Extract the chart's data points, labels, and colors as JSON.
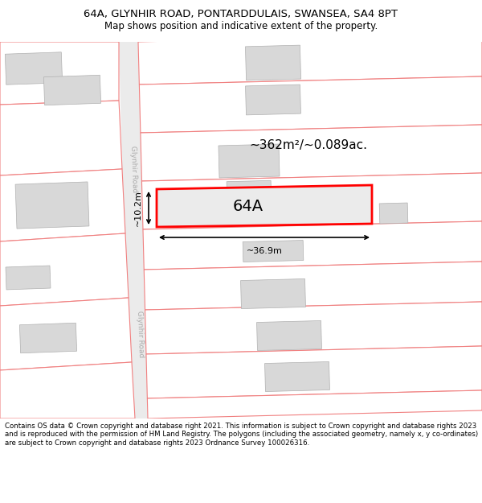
{
  "title_line1": "64A, GLYNHIR ROAD, PONTARDDULAIS, SWANSEA, SA4 8PT",
  "title_line2": "Map shows position and indicative extent of the property.",
  "footer_text": "Contains OS data © Crown copyright and database right 2021. This information is subject to Crown copyright and database rights 2023 and is reproduced with the permission of HM Land Registry. The polygons (including the associated geometry, namely x, y co-ordinates) are subject to Crown copyright and database rights 2023 Ordnance Survey 100026316.",
  "area_label": "~362m²/~0.089ac.",
  "property_label": "64A",
  "dim_width": "~36.9m",
  "dim_height": "~10.2m",
  "road_label": "Glynhir Road",
  "bg_color": "#ffffff",
  "map_bg": "#ffffff",
  "road_fill": "#ebebeb",
  "plot_outline_color": "#ff0000",
  "plot_fill_color": "#ebebeb",
  "building_fill": "#d8d8d8",
  "building_outline": "#b0b0b0",
  "parcel_line_color": "#f08080",
  "title_fontsize": 9.5,
  "subtitle_fontsize": 8.5,
  "footer_fontsize": 6.2
}
